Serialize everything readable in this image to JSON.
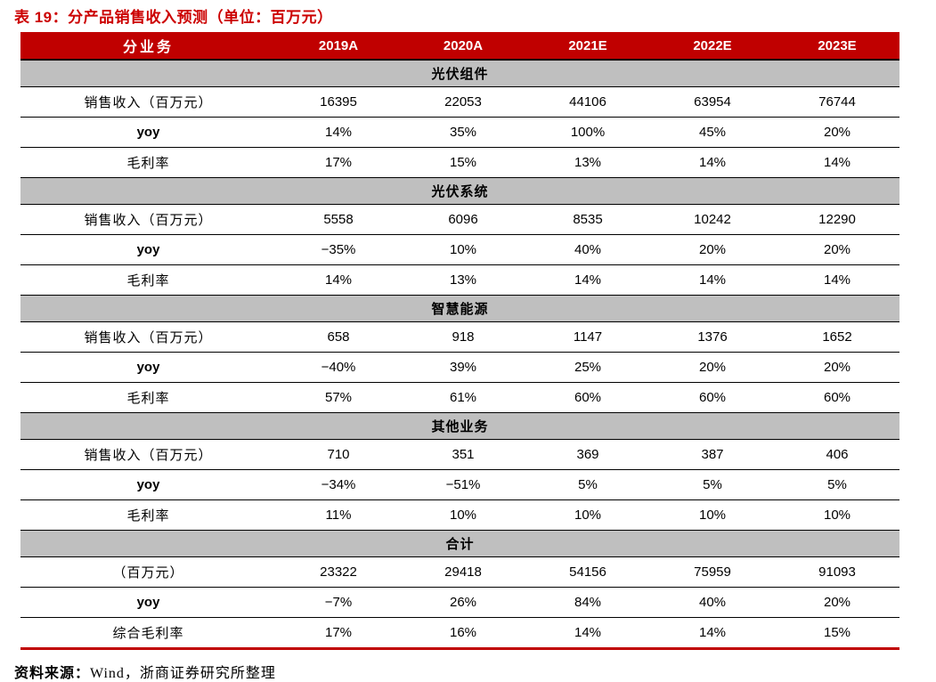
{
  "title": "表 19：分产品销售收入预测（单位：百万元）",
  "colors": {
    "title_red": "#cc0000",
    "header_band_red": "#c00000",
    "section_gray": "#bfbfbf",
    "header_text": "#ffffff",
    "bottom_rule_red": "#c00000"
  },
  "table": {
    "header": [
      "分业务",
      "2019A",
      "2020A",
      "2021E",
      "2022E",
      "2023E"
    ],
    "sections": [
      {
        "name": "光伏组件",
        "rows": [
          {
            "label": "销售收入（百万元）",
            "values": [
              "16395",
              "22053",
              "44106",
              "63954",
              "76744"
            ]
          },
          {
            "label": "yoy",
            "values": [
              "14%",
              "35%",
              "100%",
              "45%",
              "20%"
            ]
          },
          {
            "label": "毛利率",
            "values": [
              "17%",
              "15%",
              "13%",
              "14%",
              "14%"
            ]
          }
        ]
      },
      {
        "name": "光伏系统",
        "rows": [
          {
            "label": "销售收入（百万元）",
            "values": [
              "5558",
              "6096",
              "8535",
              "10242",
              "12290"
            ]
          },
          {
            "label": "yoy",
            "values": [
              "−35%",
              "10%",
              "40%",
              "20%",
              "20%"
            ]
          },
          {
            "label": "毛利率",
            "values": [
              "14%",
              "13%",
              "14%",
              "14%",
              "14%"
            ]
          }
        ]
      },
      {
        "name": "智慧能源",
        "rows": [
          {
            "label": "销售收入（百万元）",
            "values": [
              "658",
              "918",
              "1147",
              "1376",
              "1652"
            ]
          },
          {
            "label": "yoy",
            "values": [
              "−40%",
              "39%",
              "25%",
              "20%",
              "20%"
            ]
          },
          {
            "label": "毛利率",
            "values": [
              "57%",
              "61%",
              "60%",
              "60%",
              "60%"
            ]
          }
        ]
      },
      {
        "name": "其他业务",
        "rows": [
          {
            "label": "销售收入（百万元）",
            "values": [
              "710",
              "351",
              "369",
              "387",
              "406"
            ]
          },
          {
            "label": "yoy",
            "values": [
              "−34%",
              "−51%",
              "5%",
              "5%",
              "5%"
            ]
          },
          {
            "label": "毛利率",
            "values": [
              "11%",
              "10%",
              "10%",
              "10%",
              "10%"
            ]
          }
        ]
      },
      {
        "name": "合计",
        "rows": [
          {
            "label": "（百万元）",
            "values": [
              "23322",
              "29418",
              "54156",
              "75959",
              "91093"
            ]
          },
          {
            "label": "yoy",
            "values": [
              "−7%",
              "26%",
              "84%",
              "40%",
              "20%"
            ]
          },
          {
            "label": "综合毛利率",
            "values": [
              "17%",
              "16%",
              "14%",
              "14%",
              "15%"
            ]
          }
        ]
      }
    ]
  },
  "source": {
    "label": "资料来源：",
    "text": "Wind，浙商证券研究所整理"
  }
}
